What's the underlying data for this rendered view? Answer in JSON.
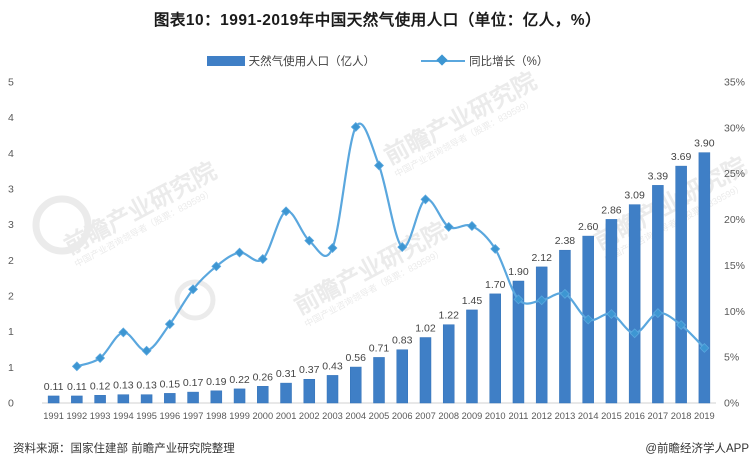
{
  "title": "图表10：1991-2019年中国天然气使用人口（单位：亿人，%）",
  "legend": {
    "bar_label": "天然气使用人口（亿人）",
    "line_label": "同比增长（%）"
  },
  "chart_data": {
    "type": "bar+line combo",
    "categories": [
      "1991",
      "1992",
      "1993",
      "1994",
      "1995",
      "1996",
      "1997",
      "1998",
      "1999",
      "2000",
      "2001",
      "2002",
      "2003",
      "2004",
      "2005",
      "2006",
      "2007",
      "2008",
      "2009",
      "2010",
      "2011",
      "2012",
      "2013",
      "2014",
      "2015",
      "2016",
      "2017",
      "2018",
      "2019"
    ],
    "series": [
      {
        "name": "天然气使用人口（亿人）",
        "type": "bar",
        "axis": "left",
        "values": [
          0.11,
          0.11,
          0.12,
          0.13,
          0.13,
          0.15,
          0.17,
          0.19,
          0.22,
          0.26,
          0.31,
          0.37,
          0.43,
          0.56,
          0.71,
          0.83,
          1.02,
          1.22,
          1.45,
          1.7,
          1.9,
          2.12,
          2.38,
          2.6,
          2.86,
          3.09,
          3.39,
          3.69,
          3.9
        ],
        "data_labels": true
      },
      {
        "name": "同比增长（%）",
        "type": "line",
        "axis": "right",
        "values": [
          null,
          4.0,
          4.9,
          7.7,
          5.7,
          8.6,
          12.4,
          14.9,
          16.4,
          15.7,
          20.9,
          17.7,
          16.9,
          30.1,
          25.9,
          17.0,
          22.2,
          19.2,
          19.3,
          16.8,
          11.3,
          11.2,
          11.9,
          9.1,
          9.7,
          7.6,
          9.8,
          8.5,
          6.0
        ],
        "data_labels": false,
        "smooth": true,
        "marker": "diamond"
      }
    ],
    "left_axis": {
      "min": 0,
      "max": 5,
      "tick_labels_bottom_to_top": [
        "0",
        "1",
        "1",
        "2",
        "2",
        "3",
        "3",
        "4",
        "4",
        "5"
      ]
    },
    "right_axis": {
      "min": 0,
      "max": 35,
      "tick_labels_bottom_to_top": [
        "0%",
        "5%",
        "10%",
        "15%",
        "20%",
        "25%",
        "30%",
        "35%"
      ]
    },
    "grid": "off",
    "legend_position": "top-center"
  },
  "watermark": {
    "text": "前瞻产业研究院",
    "subtext": "中国产业咨询领导者（股票：839599）"
  },
  "footer": {
    "source": "资料来源：国家住建部 前瞻产业研究院整理",
    "credit": "@前瞻经济学人APP"
  },
  "colors": {
    "bar": "#3F7FC6",
    "bar_edge": "#3372B9",
    "line": "#5AA7DE",
    "marker": "#3D96D2",
    "axis_line": "#d0d0d0",
    "tick_text": "#595959",
    "value_label": "#444444",
    "watermark": "#ebebeb",
    "title_text": "#1a1a1a",
    "footer_text": "#333333"
  }
}
